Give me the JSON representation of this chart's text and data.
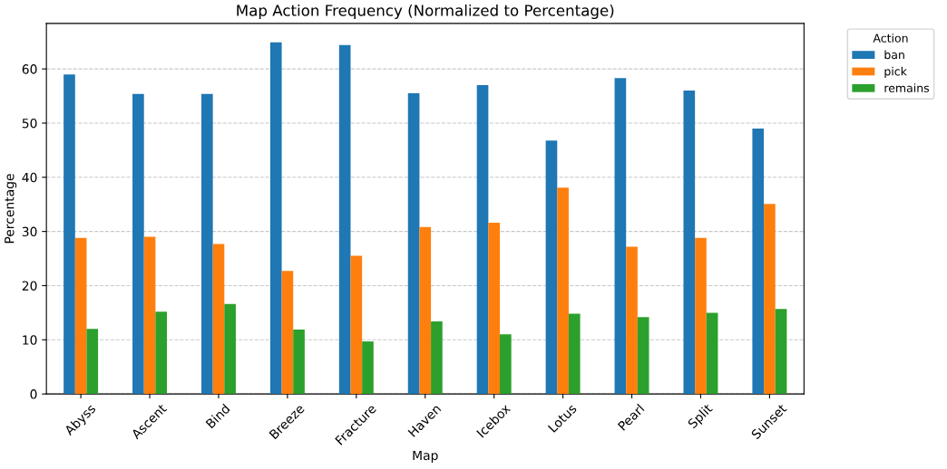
{
  "chart_data": {
    "type": "bar",
    "title": "Map Action Frequency (Normalized to Percentage)",
    "xlabel": "Map",
    "ylabel": "Percentage",
    "legend_title": "Action",
    "legend": "top right",
    "grid": "y",
    "categories": [
      "Abyss",
      "Ascent",
      "Bind",
      "Breeze",
      "Fracture",
      "Haven",
      "Icebox",
      "Lotus",
      "Pearl",
      "Split",
      "Sunset"
    ],
    "ylim": [
      0,
      68.4
    ],
    "yticks": [
      0,
      10,
      20,
      30,
      40,
      50,
      60
    ],
    "series": [
      {
        "name": "ban",
        "color": "#1f77b4",
        "values": [
          59.0,
          55.4,
          55.4,
          64.9,
          64.4,
          55.5,
          57.0,
          46.8,
          58.3,
          56.0,
          49.0
        ]
      },
      {
        "name": "pick",
        "color": "#ff7f0e",
        "values": [
          28.8,
          29.0,
          27.7,
          22.7,
          25.5,
          30.8,
          31.6,
          38.1,
          27.2,
          28.8,
          35.1
        ]
      },
      {
        "name": "remains",
        "color": "#2ca02c",
        "values": [
          12.0,
          15.2,
          16.6,
          11.9,
          9.7,
          13.4,
          11.0,
          14.8,
          14.2,
          15.0,
          15.7
        ]
      }
    ]
  }
}
